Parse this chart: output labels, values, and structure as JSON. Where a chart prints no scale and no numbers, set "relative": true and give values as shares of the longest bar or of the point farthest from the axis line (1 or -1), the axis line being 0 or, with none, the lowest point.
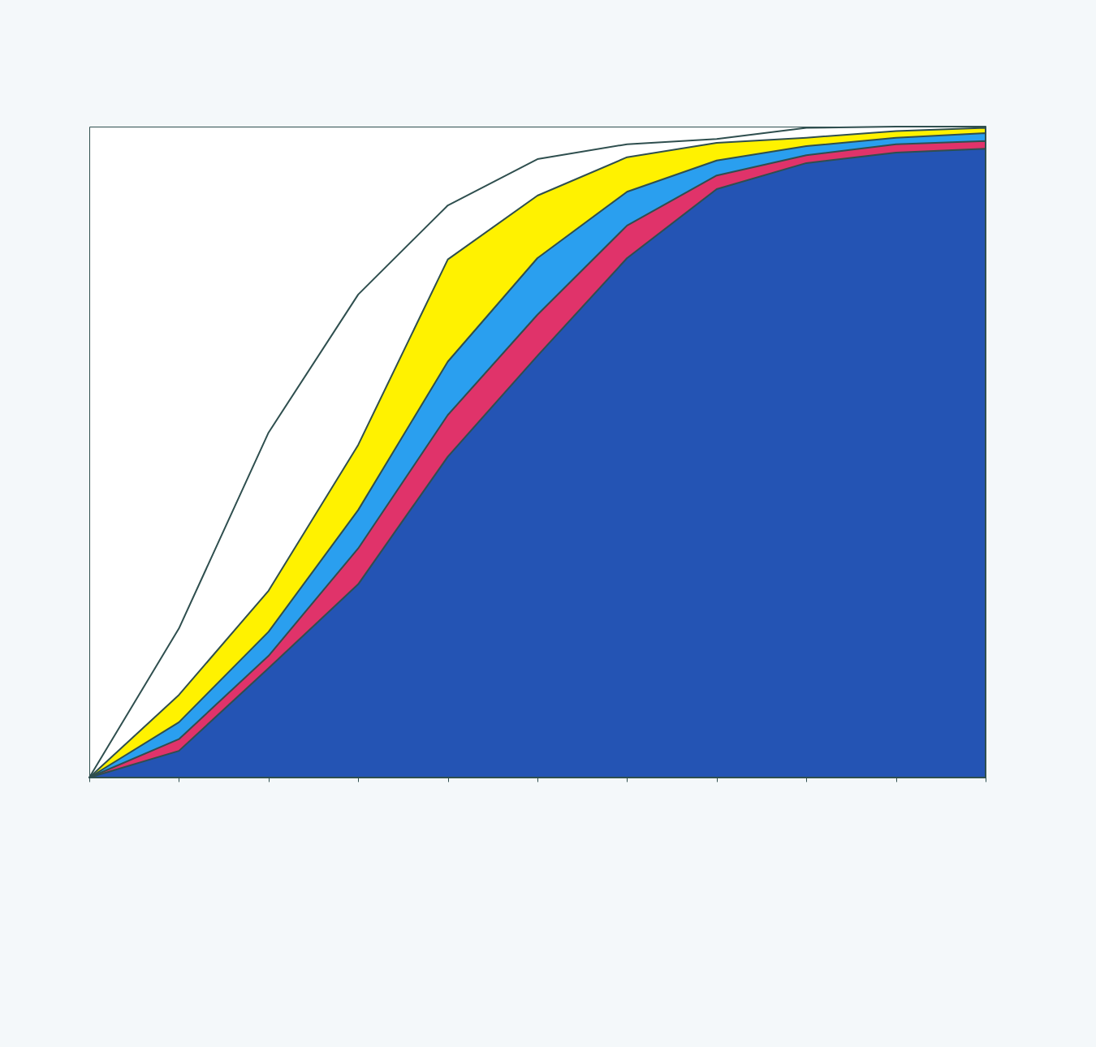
{
  "chart_data": {
    "type": "area",
    "relative": true,
    "categories": [
      null,
      null,
      null,
      null,
      null,
      null,
      null,
      null,
      null,
      null,
      null
    ],
    "series": [
      {
        "color": "#ffffff",
        "values": [
          0,
          0.229,
          0.53,
          0.742,
          0.879,
          0.95,
          0.973,
          0.981,
          0.998,
          1,
          1
        ]
      },
      {
        "color": "#fff200",
        "values": [
          0,
          0.127,
          0.287,
          0.511,
          0.796,
          0.894,
          0.953,
          0.975,
          0.983,
          0.993,
          0.998
        ]
      },
      {
        "color": "#2a9fef",
        "values": [
          0,
          0.085,
          0.224,
          0.411,
          0.639,
          0.798,
          0.9,
          0.948,
          0.97,
          0.983,
          0.99
        ]
      },
      {
        "color": "#e0336a",
        "values": [
          0,
          0.059,
          0.187,
          0.352,
          0.557,
          0.711,
          0.848,
          0.925,
          0.956,
          0.973,
          0.978
        ]
      },
      {
        "color": "#2454b4",
        "values": [
          0,
          0.041,
          0.168,
          0.297,
          0.493,
          0.648,
          0.798,
          0.904,
          0.944,
          0.96,
          0.966
        ]
      }
    ]
  }
}
